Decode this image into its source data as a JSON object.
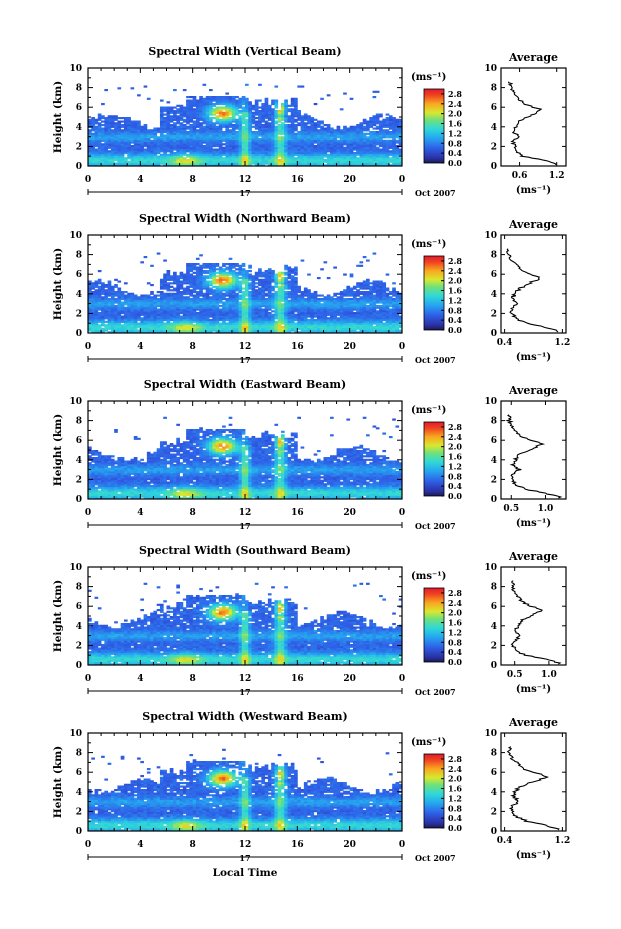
{
  "chart_data": [
    {
      "type": "heatmap",
      "title": "Spectral Width (Vertical Beam)",
      "ylabel": "Height (km)",
      "xticks": [
        "0",
        "4",
        "8",
        "12",
        "16",
        "20",
        "0"
      ],
      "yticks": [
        "0",
        "2",
        "4",
        "6",
        "8",
        "10"
      ],
      "xlim": [
        0,
        24
      ],
      "ylim": [
        0,
        10
      ],
      "colorbar": {
        "unit": "(ms⁻¹)",
        "ticks": [
          "0.0",
          "0.4",
          "0.8",
          "1.2",
          "1.6",
          "2.0",
          "2.4",
          "2.8"
        ],
        "range": [
          0,
          3.0
        ]
      },
      "date_label": "17",
      "month_label": "Oct 2007",
      "average": {
        "title": "Average",
        "xlabel": "(ms⁻¹)",
        "xticks": [
          "0.6",
          "1.2"
        ],
        "xlim": [
          0.3,
          1.35
        ],
        "profile": [
          [
            0.2,
            1.2
          ],
          [
            0.6,
            1.0
          ],
          [
            1.0,
            0.65
          ],
          [
            1.5,
            0.55
          ],
          [
            2.0,
            0.52
          ],
          [
            2.5,
            0.5
          ],
          [
            3.0,
            0.58
          ],
          [
            3.5,
            0.5
          ],
          [
            4.0,
            0.54
          ],
          [
            4.5,
            0.58
          ],
          [
            5.0,
            0.72
          ],
          [
            5.5,
            0.9
          ],
          [
            5.8,
            0.92
          ],
          [
            6.2,
            0.72
          ],
          [
            6.8,
            0.58
          ],
          [
            7.5,
            0.5
          ],
          [
            8.0,
            0.47
          ],
          [
            8.5,
            0.45
          ]
        ]
      }
    },
    {
      "type": "heatmap",
      "title": "Spectral Width (Northward Beam)",
      "ylabel": "Height (km)",
      "xticks": [
        "0",
        "4",
        "8",
        "12",
        "16",
        "20",
        "0"
      ],
      "yticks": [
        "0",
        "2",
        "4",
        "6",
        "8",
        "10"
      ],
      "xlim": [
        0,
        24
      ],
      "ylim": [
        0,
        10
      ],
      "colorbar": {
        "unit": "(ms⁻¹)",
        "ticks": [
          "0.0",
          "0.4",
          "0.8",
          "1.2",
          "1.6",
          "2.0",
          "2.4",
          "2.8"
        ],
        "range": [
          0,
          3.0
        ]
      },
      "date_label": "17",
      "month_label": "Oct 2007",
      "average": {
        "title": "Average",
        "xlabel": "(ms⁻¹)",
        "xticks": [
          "0.4",
          "1.2"
        ],
        "xlim": [
          0.35,
          1.25
        ],
        "profile": [
          [
            0.2,
            1.15
          ],
          [
            0.6,
            0.95
          ],
          [
            1.0,
            0.7
          ],
          [
            1.5,
            0.55
          ],
          [
            2.0,
            0.5
          ],
          [
            2.5,
            0.48
          ],
          [
            3.0,
            0.56
          ],
          [
            3.5,
            0.5
          ],
          [
            4.0,
            0.55
          ],
          [
            4.5,
            0.6
          ],
          [
            5.0,
            0.72
          ],
          [
            5.6,
            0.9
          ],
          [
            6.0,
            0.78
          ],
          [
            6.5,
            0.62
          ],
          [
            7.0,
            0.56
          ],
          [
            7.5,
            0.5
          ],
          [
            8.0,
            0.46
          ]
        ]
      }
    },
    {
      "type": "heatmap",
      "title": "Spectral Width (Eastward Beam)",
      "ylabel": "Height (km)",
      "xticks": [
        "0",
        "4",
        "8",
        "12",
        "16",
        "20",
        "0"
      ],
      "yticks": [
        "0",
        "2",
        "4",
        "6",
        "8",
        "10"
      ],
      "xlim": [
        0,
        24
      ],
      "ylim": [
        0,
        10
      ],
      "colorbar": {
        "unit": "(ms⁻¹)",
        "ticks": [
          "0.0",
          "0.4",
          "0.8",
          "1.2",
          "1.6",
          "2.0",
          "2.4",
          "2.8"
        ],
        "range": [
          0,
          3.0
        ]
      },
      "date_label": "17",
      "month_label": "Oct 2007",
      "average": {
        "title": "Average",
        "xlabel": "(ms⁻¹)",
        "xticks": [
          "0.5",
          "1.0"
        ],
        "xlim": [
          0.35,
          1.3
        ],
        "profile": [
          [
            0.2,
            1.2
          ],
          [
            0.6,
            1.0
          ],
          [
            1.0,
            0.7
          ],
          [
            1.5,
            0.55
          ],
          [
            2.0,
            0.5
          ],
          [
            2.5,
            0.52
          ],
          [
            3.0,
            0.62
          ],
          [
            3.5,
            0.52
          ],
          [
            4.0,
            0.56
          ],
          [
            4.5,
            0.62
          ],
          [
            5.0,
            0.76
          ],
          [
            5.6,
            0.95
          ],
          [
            6.0,
            0.8
          ],
          [
            6.5,
            0.62
          ],
          [
            7.0,
            0.55
          ],
          [
            7.5,
            0.5
          ],
          [
            8.0,
            0.47
          ]
        ]
      }
    },
    {
      "type": "heatmap",
      "title": "Spectral Width (Southward Beam)",
      "ylabel": "Height (km)",
      "xticks": [
        "0",
        "4",
        "8",
        "12",
        "16",
        "20",
        "0"
      ],
      "yticks": [
        "0",
        "2",
        "4",
        "6",
        "8",
        "10"
      ],
      "xlim": [
        0,
        24
      ],
      "ylim": [
        0,
        10
      ],
      "colorbar": {
        "unit": "(ms⁻¹)",
        "ticks": [
          "0.0",
          "0.4",
          "0.8",
          "1.2",
          "1.6",
          "2.0",
          "2.4",
          "2.8"
        ],
        "range": [
          0,
          3.0
        ]
      },
      "date_label": "17",
      "month_label": "Oct 2007",
      "average": {
        "title": "Average",
        "xlabel": "(ms⁻¹)",
        "xticks": [
          "0.5",
          "1.0"
        ],
        "xlim": [
          0.3,
          1.25
        ],
        "profile": [
          [
            0.2,
            1.15
          ],
          [
            0.6,
            0.95
          ],
          [
            1.0,
            0.65
          ],
          [
            1.5,
            0.5
          ],
          [
            2.0,
            0.48
          ],
          [
            2.5,
            0.5
          ],
          [
            3.0,
            0.6
          ],
          [
            3.5,
            0.5
          ],
          [
            4.0,
            0.55
          ],
          [
            4.5,
            0.6
          ],
          [
            5.0,
            0.72
          ],
          [
            5.6,
            0.9
          ],
          [
            6.0,
            0.74
          ],
          [
            6.5,
            0.6
          ],
          [
            7.0,
            0.55
          ],
          [
            7.5,
            0.5
          ],
          [
            8.0,
            0.47
          ]
        ]
      }
    },
    {
      "type": "heatmap",
      "title": "Spectral Width (Westward Beam)",
      "ylabel": "Height (km)",
      "xlabel": "Local Time",
      "xticks": [
        "0",
        "4",
        "8",
        "12",
        "16",
        "20",
        "0"
      ],
      "yticks": [
        "0",
        "2",
        "4",
        "6",
        "8",
        "10"
      ],
      "xlim": [
        0,
        24
      ],
      "ylim": [
        0,
        10
      ],
      "colorbar": {
        "unit": "(ms⁻¹)",
        "ticks": [
          "0.0",
          "0.4",
          "0.8",
          "1.2",
          "1.6",
          "2.0",
          "2.4",
          "2.8"
        ],
        "range": [
          0,
          3.0
        ]
      },
      "date_label": "17",
      "month_label": "Oct 2007",
      "average": {
        "title": "Average",
        "xlabel": "(ms⁻¹)",
        "xticks": [
          "0.4",
          "1.2"
        ],
        "xlim": [
          0.35,
          1.25
        ],
        "profile": [
          [
            0.2,
            1.15
          ],
          [
            0.6,
            0.95
          ],
          [
            1.0,
            0.7
          ],
          [
            1.5,
            0.55
          ],
          [
            2.0,
            0.5
          ],
          [
            2.5,
            0.5
          ],
          [
            3.0,
            0.6
          ],
          [
            3.5,
            0.52
          ],
          [
            4.0,
            0.55
          ],
          [
            4.5,
            0.6
          ],
          [
            5.0,
            0.78
          ],
          [
            5.5,
            1.0
          ],
          [
            5.9,
            0.85
          ],
          [
            6.4,
            0.65
          ],
          [
            7.0,
            0.56
          ],
          [
            7.5,
            0.5
          ],
          [
            8.0,
            0.47
          ]
        ]
      }
    }
  ]
}
